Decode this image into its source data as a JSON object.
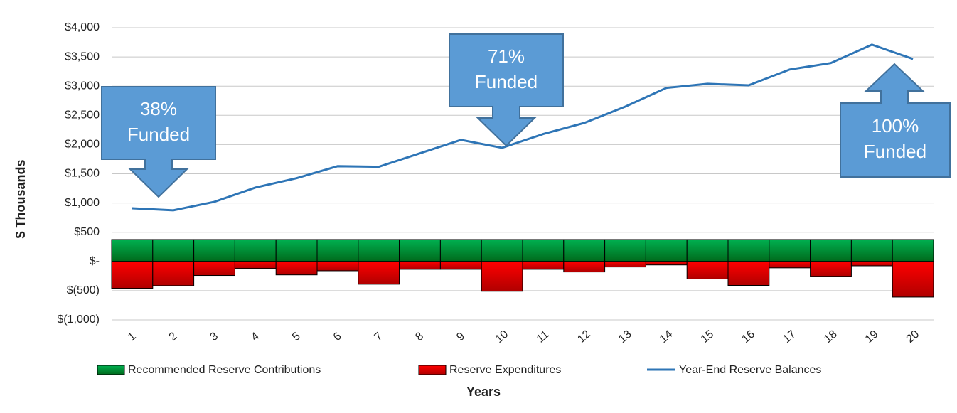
{
  "chart_data": {
    "type": "combo",
    "y_axis_label": "$ Thousands",
    "x_axis_label": "Years",
    "categories": [
      "1",
      "2",
      "3",
      "4",
      "5",
      "6",
      "7",
      "8",
      "9",
      "10",
      "11",
      "12",
      "13",
      "14",
      "15",
      "16",
      "17",
      "18",
      "19",
      "20"
    ],
    "ylim": [
      -1000,
      4000
    ],
    "yticks": [
      {
        "value": -1000,
        "label": "$(1,000)"
      },
      {
        "value": -500,
        "label": "$(500)"
      },
      {
        "value": 0,
        "label": "$-"
      },
      {
        "value": 500,
        "label": "$500"
      },
      {
        "value": 1000,
        "label": "$1,000"
      },
      {
        "value": 1500,
        "label": "$1,500"
      },
      {
        "value": 2000,
        "label": "$2,000"
      },
      {
        "value": 2500,
        "label": "$2,500"
      },
      {
        "value": 3000,
        "label": "$3,000"
      },
      {
        "value": 3500,
        "label": "$3,500"
      },
      {
        "value": 4000,
        "label": "$4,000"
      }
    ],
    "grid": true,
    "series": [
      {
        "name": "Recommended Reserve Contributions",
        "type": "bar",
        "color": "#00b050",
        "values": [
          375,
          375,
          375,
          375,
          375,
          375,
          375,
          375,
          375,
          375,
          375,
          375,
          375,
          375,
          375,
          375,
          375,
          375,
          375,
          375
        ]
      },
      {
        "name": "Reserve Expenditures",
        "type": "bar",
        "color": "#ff0000",
        "values": [
          -460,
          -415,
          -240,
          -120,
          -230,
          -160,
          -390,
          -135,
          -135,
          -510,
          -135,
          -180,
          -95,
          -60,
          -300,
          -410,
          -110,
          -255,
          -75,
          -610
        ]
      },
      {
        "name": "Year-End Reserve Balances",
        "type": "line",
        "color": "#2e75b6",
        "values": [
          910,
          875,
          1020,
          1265,
          1425,
          1630,
          1620,
          1850,
          2080,
          1945,
          2180,
          2370,
          2650,
          2970,
          3040,
          3015,
          3285,
          3395,
          3710,
          3465
        ]
      }
    ],
    "annotations": [
      {
        "lines": [
          "38%",
          "Funded"
        ]
      },
      {
        "lines": [
          "71%",
          "Funded"
        ]
      },
      {
        "lines": [
          "100%",
          "Funded"
        ]
      }
    ]
  }
}
